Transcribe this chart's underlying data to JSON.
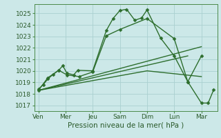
{
  "background_color": "#cce8e8",
  "grid_color": "#aad0d0",
  "line_color": "#2d6e2d",
  "marker_color": "#2d6e2d",
  "xlabel": "Pression niveau de la mer( hPa )",
  "xlabel_fontsize": 7.5,
  "tick_labels": [
    "Ven",
    "Mer",
    "Jeu",
    "Sam",
    "Dim",
    "Lun",
    "Mar"
  ],
  "tick_positions": [
    0,
    1,
    2,
    3,
    4,
    5,
    6
  ],
  "ylim": [
    1016.5,
    1025.8
  ],
  "yticks": [
    1017,
    1018,
    1019,
    1020,
    1021,
    1022,
    1023,
    1024,
    1025
  ],
  "xlim": [
    -0.15,
    6.6
  ],
  "series": [
    {
      "x": [
        0.0,
        0.18,
        0.35,
        0.55,
        0.75,
        0.9,
        1.05,
        1.3,
        1.45,
        2.0,
        2.5,
        2.75,
        3.0,
        3.25,
        3.55,
        3.8,
        4.0,
        4.5,
        5.0,
        5.5,
        6.0,
        6.25,
        6.45
      ],
      "y": [
        1018.4,
        1018.8,
        1019.3,
        1019.7,
        1020.05,
        1020.45,
        1019.8,
        1019.65,
        1020.05,
        1020.0,
        1023.5,
        1024.55,
        1025.25,
        1025.35,
        1024.4,
        1024.6,
        1025.3,
        1022.85,
        1021.3,
        1019.05,
        1017.2,
        1017.2,
        1018.35
      ],
      "marker": "D",
      "markersize": 2.5,
      "linewidth": 1.0
    },
    {
      "x": [
        0.0,
        0.35,
        0.75,
        1.05,
        1.5,
        2.0,
        2.5,
        3.0,
        4.0,
        5.0,
        5.5,
        6.0
      ],
      "y": [
        1018.3,
        1019.4,
        1020.05,
        1019.65,
        1019.5,
        1019.9,
        1023.05,
        1023.6,
        1024.55,
        1022.8,
        1019.05,
        1021.3
      ],
      "marker": "D",
      "markersize": 2.5,
      "linewidth": 1.0
    },
    {
      "x": [
        0.0,
        6.0
      ],
      "y": [
        1018.3,
        1022.1
      ],
      "marker": null,
      "markersize": 0,
      "linewidth": 1.0
    },
    {
      "x": [
        0.0,
        5.5
      ],
      "y": [
        1018.3,
        1021.3
      ],
      "marker": null,
      "markersize": 0,
      "linewidth": 1.0
    },
    {
      "x": [
        0.0,
        4.0,
        6.0
      ],
      "y": [
        1018.3,
        1020.0,
        1019.5
      ],
      "marker": null,
      "markersize": 0,
      "linewidth": 1.0
    }
  ]
}
